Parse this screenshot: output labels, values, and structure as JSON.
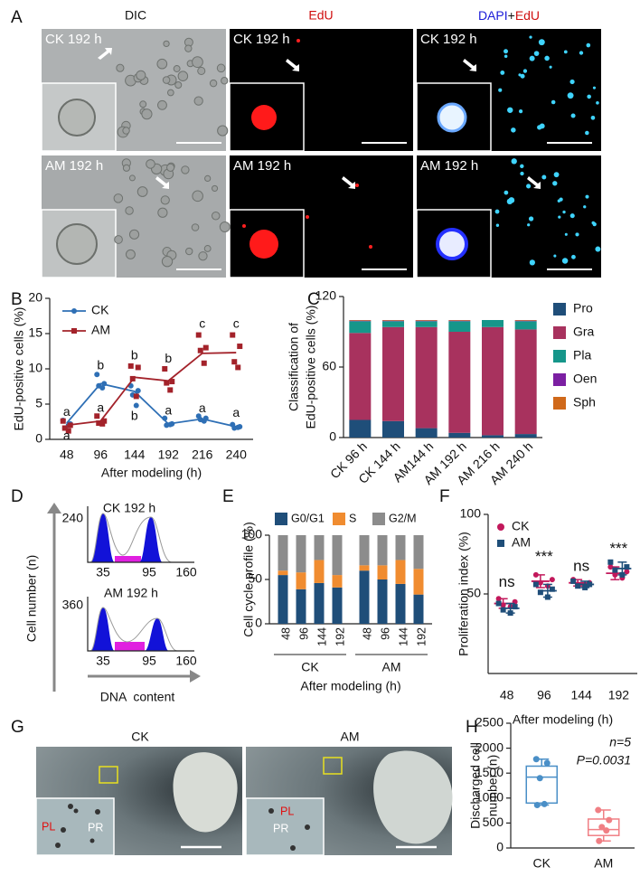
{
  "panel_a": {
    "label": "A",
    "headers": [
      "DIC",
      "EdU"
    ],
    "merge_header": [
      "DAPI",
      "+",
      "EdU"
    ],
    "rows": [
      "CK 192 h",
      "AM 192 h"
    ]
  },
  "panel_d": {
    "label": "D",
    "ylabel": "Cell number (n)",
    "xlabel": "DNA  content",
    "histograms": [
      {
        "title": "CK 192 h",
        "ymax": 240,
        "xticks": [
          35,
          95,
          160
        ]
      },
      {
        "title": "AM 192 h",
        "ymax": 360,
        "xticks": [
          35,
          95,
          160
        ]
      }
    ]
  },
  "panel_g": {
    "label": "G",
    "images": [
      "CK",
      "AM"
    ],
    "markers": [
      "PL",
      "PR"
    ]
  },
  "chart_data": [
    {
      "label": "B",
      "type": "line",
      "categories": [
        48,
        96,
        144,
        192,
        216,
        240
      ],
      "ylim": [
        0,
        20
      ],
      "yticks": [
        0,
        5,
        10,
        15,
        20
      ],
      "ylabel": "EdU-positive cells (%)",
      "xlabel": "After modeling (h)",
      "legend": "upper left",
      "series": [
        {
          "name": "CK",
          "color": "#2e6fb5",
          "values": [
            2.3,
            7.9,
            6.8,
            2.2,
            2.9,
            1.8
          ],
          "points": [
            [
              2.7,
              2.2,
              1.6,
              2.0
            ],
            [
              9.2,
              7.9,
              7.6,
              7.3
            ],
            [
              7.6,
              6.9,
              6.3,
              4.8
            ],
            [
              3.0,
              2.2,
              2.0,
              2.1
            ],
            [
              3.3,
              3.0,
              2.8,
              2.6
            ],
            [
              2.1,
              1.8,
              1.6,
              1.7
            ]
          ]
        },
        {
          "name": "AM",
          "color": "#a3222a",
          "values": [
            2.0,
            2.6,
            8.8,
            8.3,
            12.2,
            12.3
          ],
          "points": [
            [
              2.6,
              2.0,
              1.6,
              1.2
            ],
            [
              3.3,
              2.6,
              2.3,
              2.2
            ],
            [
              10.4,
              10.2,
              8.6,
              6.1
            ],
            [
              10.0,
              8.2,
              8.0,
              7.0
            ],
            [
              14.8,
              13.0,
              12.6,
              10.8
            ],
            [
              14.8,
              13.2,
              11.0,
              10.2
            ]
          ]
        }
      ],
      "annotations": [
        {
          "text": "a",
          "x": 48,
          "y": 3.8
        },
        {
          "text": "a",
          "x": 48,
          "y": 0.4
        },
        {
          "text": "b",
          "x": 96,
          "y": 10.4
        },
        {
          "text": "a",
          "x": 96,
          "y": 4.4
        },
        {
          "text": "b",
          "x": 144,
          "y": 11.8
        },
        {
          "text": "b",
          "x": 144,
          "y": 3.2
        },
        {
          "text": "b",
          "x": 192,
          "y": 11.4
        },
        {
          "text": "a",
          "x": 192,
          "y": 4.0
        },
        {
          "text": "c",
          "x": 216,
          "y": 16.3
        },
        {
          "text": "a",
          "x": 216,
          "y": 4.3
        },
        {
          "text": "c",
          "x": 240,
          "y": 16.3
        },
        {
          "text": "a",
          "x": 240,
          "y": 3.7
        }
      ]
    },
    {
      "label": "C",
      "type": "stacked_bar",
      "categories": [
        "CK 96 h",
        "CK 144 h",
        "AM144 h",
        "AM 192 h",
        "AM 216 h",
        "AM 240 h"
      ],
      "ylim": [
        0,
        120
      ],
      "yticks": [
        0,
        60,
        120
      ],
      "ylabel": [
        "Classification of",
        "EdU-positive cells (%)"
      ],
      "legend": "right",
      "series": [
        {
          "name": "Pro",
          "color": "#1f4e79",
          "values": [
            15,
            14,
            8,
            4,
            2,
            3
          ]
        },
        {
          "name": "Gra",
          "color": "#a8325e",
          "values": [
            74,
            80,
            86,
            86,
            92,
            89
          ]
        },
        {
          "name": "Pla",
          "color": "#16968a",
          "values": [
            10,
            5,
            5,
            9,
            6,
            7
          ]
        },
        {
          "name": "Oen",
          "color": "#7b1fa2",
          "values": [
            0.5,
            0.5,
            0.5,
            0.5,
            0,
            0.5
          ]
        },
        {
          "name": "Sph",
          "color": "#d0691a",
          "values": [
            0.5,
            0.5,
            0.5,
            0.5,
            0,
            0.5
          ]
        }
      ]
    },
    {
      "label": "E",
      "type": "stacked_bar",
      "categories": [
        48,
        96,
        144,
        192,
        48,
        96,
        144,
        192
      ],
      "groups": [
        "CK",
        "AM"
      ],
      "ylim": [
        0,
        100
      ],
      "yticks": [
        0,
        50,
        100
      ],
      "ylabel": "Cell cycle profile (%)",
      "xlabel": "After modeling (h)",
      "legend": "top",
      "series": [
        {
          "name": "G0/G1",
          "color": "#1f4e79",
          "values": [
            55,
            39,
            46,
            41,
            60,
            50,
            45,
            33
          ]
        },
        {
          "name": "S",
          "color": "#f08c30",
          "values": [
            5,
            19,
            26,
            14,
            6,
            16,
            27,
            29
          ]
        },
        {
          "name": "G2/M",
          "color": "#8c8c8c",
          "values": [
            40,
            42,
            28,
            45,
            34,
            34,
            28,
            38
          ]
        }
      ]
    },
    {
      "label": "F",
      "type": "dot_error",
      "categories": [
        48,
        96,
        144,
        192
      ],
      "ylim": [
        0,
        100
      ],
      "yticks": [
        50,
        100
      ],
      "ylabel": "Proliferation index (%)",
      "xlabel": "After modeling (h)",
      "legend": "upper left",
      "series": [
        {
          "name": "CK",
          "color": "#c2185b",
          "values": [
            44,
            58,
            57,
            63
          ],
          "errors": [
            3,
            4,
            2,
            4
          ],
          "points": [
            [
              47,
              45,
              43,
              42
            ],
            [
              62,
              59,
              57,
              55
            ],
            [
              59,
              57,
              56,
              55
            ],
            [
              67,
              64,
              62,
              60
            ]
          ]
        },
        {
          "name": "AM",
          "color": "#1f4e79",
          "values": [
            41,
            52,
            56,
            66
          ],
          "errors": [
            3,
            4,
            2,
            4
          ],
          "points": [
            [
              44,
              42,
              40,
              38
            ],
            [
              56,
              53,
              51,
              48
            ],
            [
              58,
              56,
              55,
              54
            ],
            [
              70,
              67,
              65,
              62
            ]
          ]
        }
      ],
      "annotations": [
        {
          "text": "ns",
          "x": 48,
          "y": 57
        },
        {
          "text": "***",
          "x": 96,
          "y": 73
        },
        {
          "text": "ns",
          "x": 144,
          "y": 67
        },
        {
          "text": "***",
          "x": 192,
          "y": 78
        }
      ]
    },
    {
      "label": "H",
      "type": "box",
      "categories": [
        "CK",
        "AM"
      ],
      "ylim": [
        0,
        2500
      ],
      "yticks": [
        0,
        500,
        1000,
        1500,
        2000,
        2500
      ],
      "ylabel": [
        "Discharged cell",
        "number (n)"
      ],
      "boxes": [
        {
          "color": "#4a8fc7",
          "min": 860,
          "q1": 900,
          "median": 1420,
          "q3": 1640,
          "max": 1780,
          "points": [
            1780,
            1700,
            1400,
            880,
            860
          ]
        },
        {
          "color": "#f07f84",
          "min": 140,
          "q1": 250,
          "median": 370,
          "q3": 580,
          "max": 760,
          "points": [
            760,
            560,
            420,
            350,
            140
          ]
        }
      ],
      "annotations": [
        "n=5",
        "P=0.0031"
      ]
    }
  ]
}
